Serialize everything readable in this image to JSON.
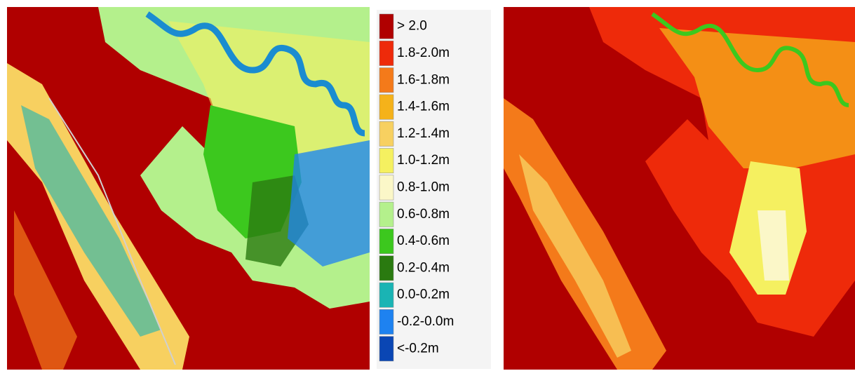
{
  "legend": {
    "items": [
      {
        "label": "> 2.0",
        "color": "#b00000"
      },
      {
        "label": "1.8-2.0m",
        "color": "#ee2a0a"
      },
      {
        "label": "1.6-1.8m",
        "color": "#f47a1a"
      },
      {
        "label": "1.4-1.6m",
        "color": "#f5b21a"
      },
      {
        "label": "1.2-1.4m",
        "color": "#f7d060"
      },
      {
        "label": "1.0-1.2m",
        "color": "#f5f060"
      },
      {
        "label": "0.8-1.0m",
        "color": "#fbf7c8"
      },
      {
        "label": "0.6-0.8m",
        "color": "#b4f08c"
      },
      {
        "label": "0.4-0.6m",
        "color": "#3cc81e"
      },
      {
        "label": "0.2-0.4m",
        "color": "#2a7a10"
      },
      {
        "label": "0.0-0.2m",
        "color": "#1ab4b4"
      },
      {
        "label": "-0.2-0.0m",
        "color": "#1e82f0"
      },
      {
        "label": "<-0.2m",
        "color": "#0a46b4"
      }
    ]
  }
}
